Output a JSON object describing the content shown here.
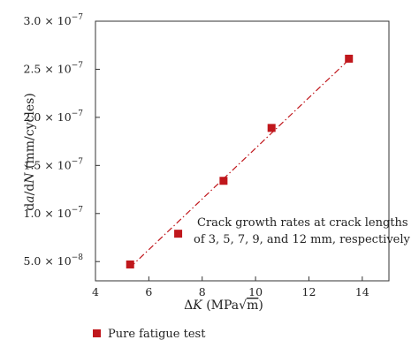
{
  "chart_data": {
    "type": "scatter",
    "x_ticks": [
      4,
      6,
      8,
      10,
      12,
      14
    ],
    "y_ticks": [
      {
        "value": 5e-08,
        "mantissa": "5.0 × 10",
        "exp": "−8"
      },
      {
        "value": 1e-07,
        "mantissa": "1.0 × 10",
        "exp": "−7"
      },
      {
        "value": 1.5e-07,
        "mantissa": "1.5 × 10",
        "exp": "−7"
      },
      {
        "value": 2e-07,
        "mantissa": "2.0 × 10",
        "exp": "−7"
      },
      {
        "value": 2.5e-07,
        "mantissa": "2.5 × 10",
        "exp": "−7"
      },
      {
        "value": 3e-07,
        "mantissa": "3.0 × 10",
        "exp": "−7"
      }
    ],
    "xlim": [
      4,
      15
    ],
    "ylim": [
      3e-08,
      3e-07
    ],
    "xlabel": {
      "delta": "Δ",
      "var": "K",
      "units": " (MPa",
      "root": "√",
      "root_arg": "m",
      "close": ")"
    },
    "ylabel": {
      "d1": "d",
      "a": "a",
      "slash": "/d",
      "N": "N",
      "units": " (mm/cycles)"
    },
    "series": [
      {
        "name": "Pure fatigue test",
        "color": "#c0171c",
        "x": [
          5.3,
          7.1,
          8.8,
          10.6,
          13.5
        ],
        "y": [
          4.7e-08,
          7.9e-08,
          1.34e-07,
          1.89e-07,
          2.61e-07
        ]
      }
    ],
    "fit_line": {
      "color": "#c0171c",
      "style": "dash-dot",
      "x": [
        5.3,
        13.5
      ],
      "y": [
        4.4e-08,
        2.6e-07
      ]
    },
    "annotation": [
      "Crack growth rates at crack lengths",
      "of 3, 5, 7, 9, and 12 mm, respectively"
    ],
    "legend_placement": "bottom-left",
    "grid": false
  }
}
